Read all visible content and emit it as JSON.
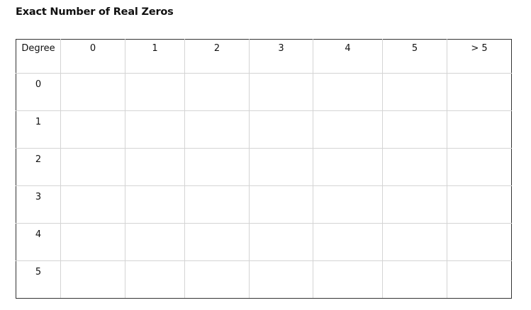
{
  "title": "Exact Number of Real Zeros",
  "table": {
    "headers": [
      "Degree",
      "0",
      "1",
      "2",
      "3",
      "4",
      "5",
      "> 5"
    ],
    "rows": [
      "0",
      "1",
      "2",
      "3",
      "4",
      "5"
    ]
  }
}
